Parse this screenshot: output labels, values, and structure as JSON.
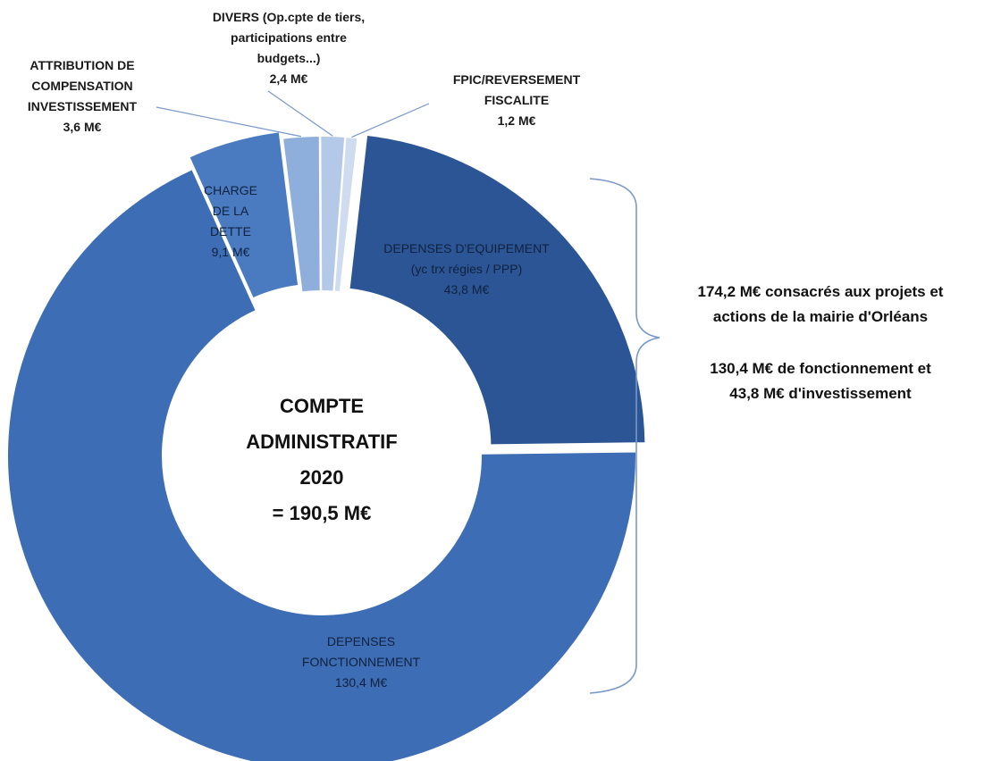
{
  "chart_data": {
    "type": "pie",
    "style": "donut",
    "categories": [
      "DEPENSES D'EQUIPEMENT (yc trx régies / PPP)",
      "DEPENSES FONCTIONNEMENT",
      "CHARGE DE LA DETTE",
      "ATTRIBUTION DE COMPENSATION INVESTISSEMENT",
      "DIVERS (Op.cpte de tiers, participations entre budgets...)",
      "FPIC/REVERSEMENT FISCALITE"
    ],
    "values": [
      43.8,
      130.4,
      9.1,
      3.6,
      2.4,
      1.2
    ],
    "unit": "M€",
    "slices": [
      {
        "label_lines": [
          "DEPENSES D'EQUIPEMENT",
          "(yc trx régies / PPP)"
        ],
        "value_label": "43,8 M€",
        "color": "#2b5594"
      },
      {
        "label_lines": [
          "DEPENSES",
          "FONCTIONNEMENT"
        ],
        "value_label": "130,4 M€",
        "color": "#3d6db4"
      },
      {
        "label_lines": [
          "CHARGE",
          "DE LA",
          "DETTE"
        ],
        "value_label": "9,1 M€",
        "color": "#4a7bc0"
      },
      {
        "label_lines": [
          "ATTRIBUTION DE",
          "COMPENSATION",
          "INVESTISSEMENT"
        ],
        "value_label": "3,6 M€",
        "color": "#8eaedb"
      },
      {
        "label_lines": [
          "DIVERS (Op.cpte de tiers,",
          "participations  entre",
          "budgets...)"
        ],
        "value_label": "2,4 M€",
        "color": "#b4c8e8"
      },
      {
        "label_lines": [
          "FPIC/REVERSEMENT",
          "FISCALITE"
        ],
        "value_label": "1,2 M€",
        "color": "#cfdcf0"
      }
    ],
    "center_lines": [
      "COMPTE",
      "ADMINISTRATIF",
      "2020",
      "= 190,5 M€"
    ],
    "bracket_note": {
      "lines1": [
        "174,2 M€ consacrés aux projets et",
        "actions de la mairie d'Orléans"
      ],
      "lines2": [
        "130,4 M€ de fonctionnement et",
        "43,8 M€ d'investissement"
      ]
    }
  }
}
